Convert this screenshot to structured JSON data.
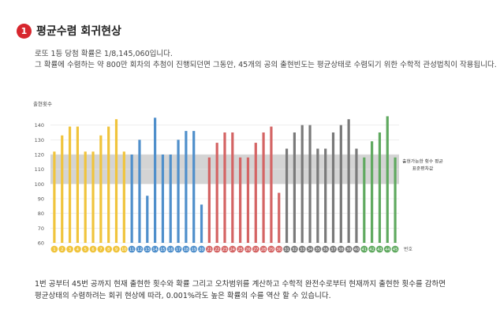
{
  "header": {
    "badge": "1",
    "title": "평균수렴 회귀현상"
  },
  "intro": [
    "로또 1등 당첨 확률은 1/8,145,060입니다.",
    "그 확률에 수렴하는 약 800만 회차의 추첨이 진행되던면 그동안, 45개의 공의 출현빈도는 평균상태로 수렴되기 위한 수학적 관성법칙이 작용됩니다."
  ],
  "footer": [
    "1번 공부터 45번 공까지 현재 출현한 횟수와 확률 그리고 오차범위를 계산하고 수학적 완전수로부터 현재까지 출현한 횟수를 감하면",
    "평균상태의 수렴하려는 회귀 현상에 따라, 0.001%라도 높은 확률의 수를 역산 할 수 있습니다."
  ],
  "colors": {
    "yellow": "#f0c43c",
    "blue": "#4f8fcb",
    "red": "#d46464",
    "gray": "#7a7a7a",
    "green": "#5fa95f",
    "band": "#d4d4d4",
    "badge": "#d7262d"
  },
  "chart_data": {
    "type": "bar",
    "ylabel": "출현횟수",
    "xlabel": "번호",
    "ylim": [
      60,
      150
    ],
    "yticks": [
      60,
      70,
      80,
      90,
      100,
      110,
      120,
      130,
      140
    ],
    "grid": true,
    "band": {
      "from": 100,
      "to": 120,
      "label_lines": [
        "출현가능한 횟수 평균",
        "표준편차값"
      ]
    },
    "categories": [
      "1",
      "2",
      "3",
      "4",
      "5",
      "6",
      "7",
      "8",
      "9",
      "10",
      "11",
      "12",
      "13",
      "14",
      "15",
      "16",
      "17",
      "18",
      "19",
      "20",
      "21",
      "22",
      "23",
      "24",
      "25",
      "26",
      "27",
      "28",
      "29",
      "30",
      "31",
      "32",
      "33",
      "34",
      "35",
      "36",
      "37",
      "38",
      "39",
      "40",
      "41",
      "42",
      "43",
      "44",
      "45"
    ],
    "values": [
      122,
      133,
      139,
      139,
      122,
      122,
      133,
      139,
      144,
      122,
      120,
      130,
      92,
      145,
      120,
      120,
      130,
      136,
      136,
      86,
      118,
      128,
      135,
      135,
      118,
      118,
      128,
      135,
      139,
      94,
      124,
      135,
      140,
      140,
      124,
      124,
      135,
      140,
      144,
      124,
      118,
      129,
      135,
      146,
      118
    ],
    "color_groups": [
      "yellow",
      "yellow",
      "yellow",
      "yellow",
      "yellow",
      "yellow",
      "yellow",
      "yellow",
      "yellow",
      "yellow",
      "blue",
      "blue",
      "blue",
      "blue",
      "blue",
      "blue",
      "blue",
      "blue",
      "blue",
      "blue",
      "red",
      "red",
      "red",
      "red",
      "red",
      "red",
      "red",
      "red",
      "red",
      "red",
      "gray",
      "gray",
      "gray",
      "gray",
      "gray",
      "gray",
      "gray",
      "gray",
      "gray",
      "gray",
      "green",
      "green",
      "green",
      "green",
      "green"
    ]
  }
}
